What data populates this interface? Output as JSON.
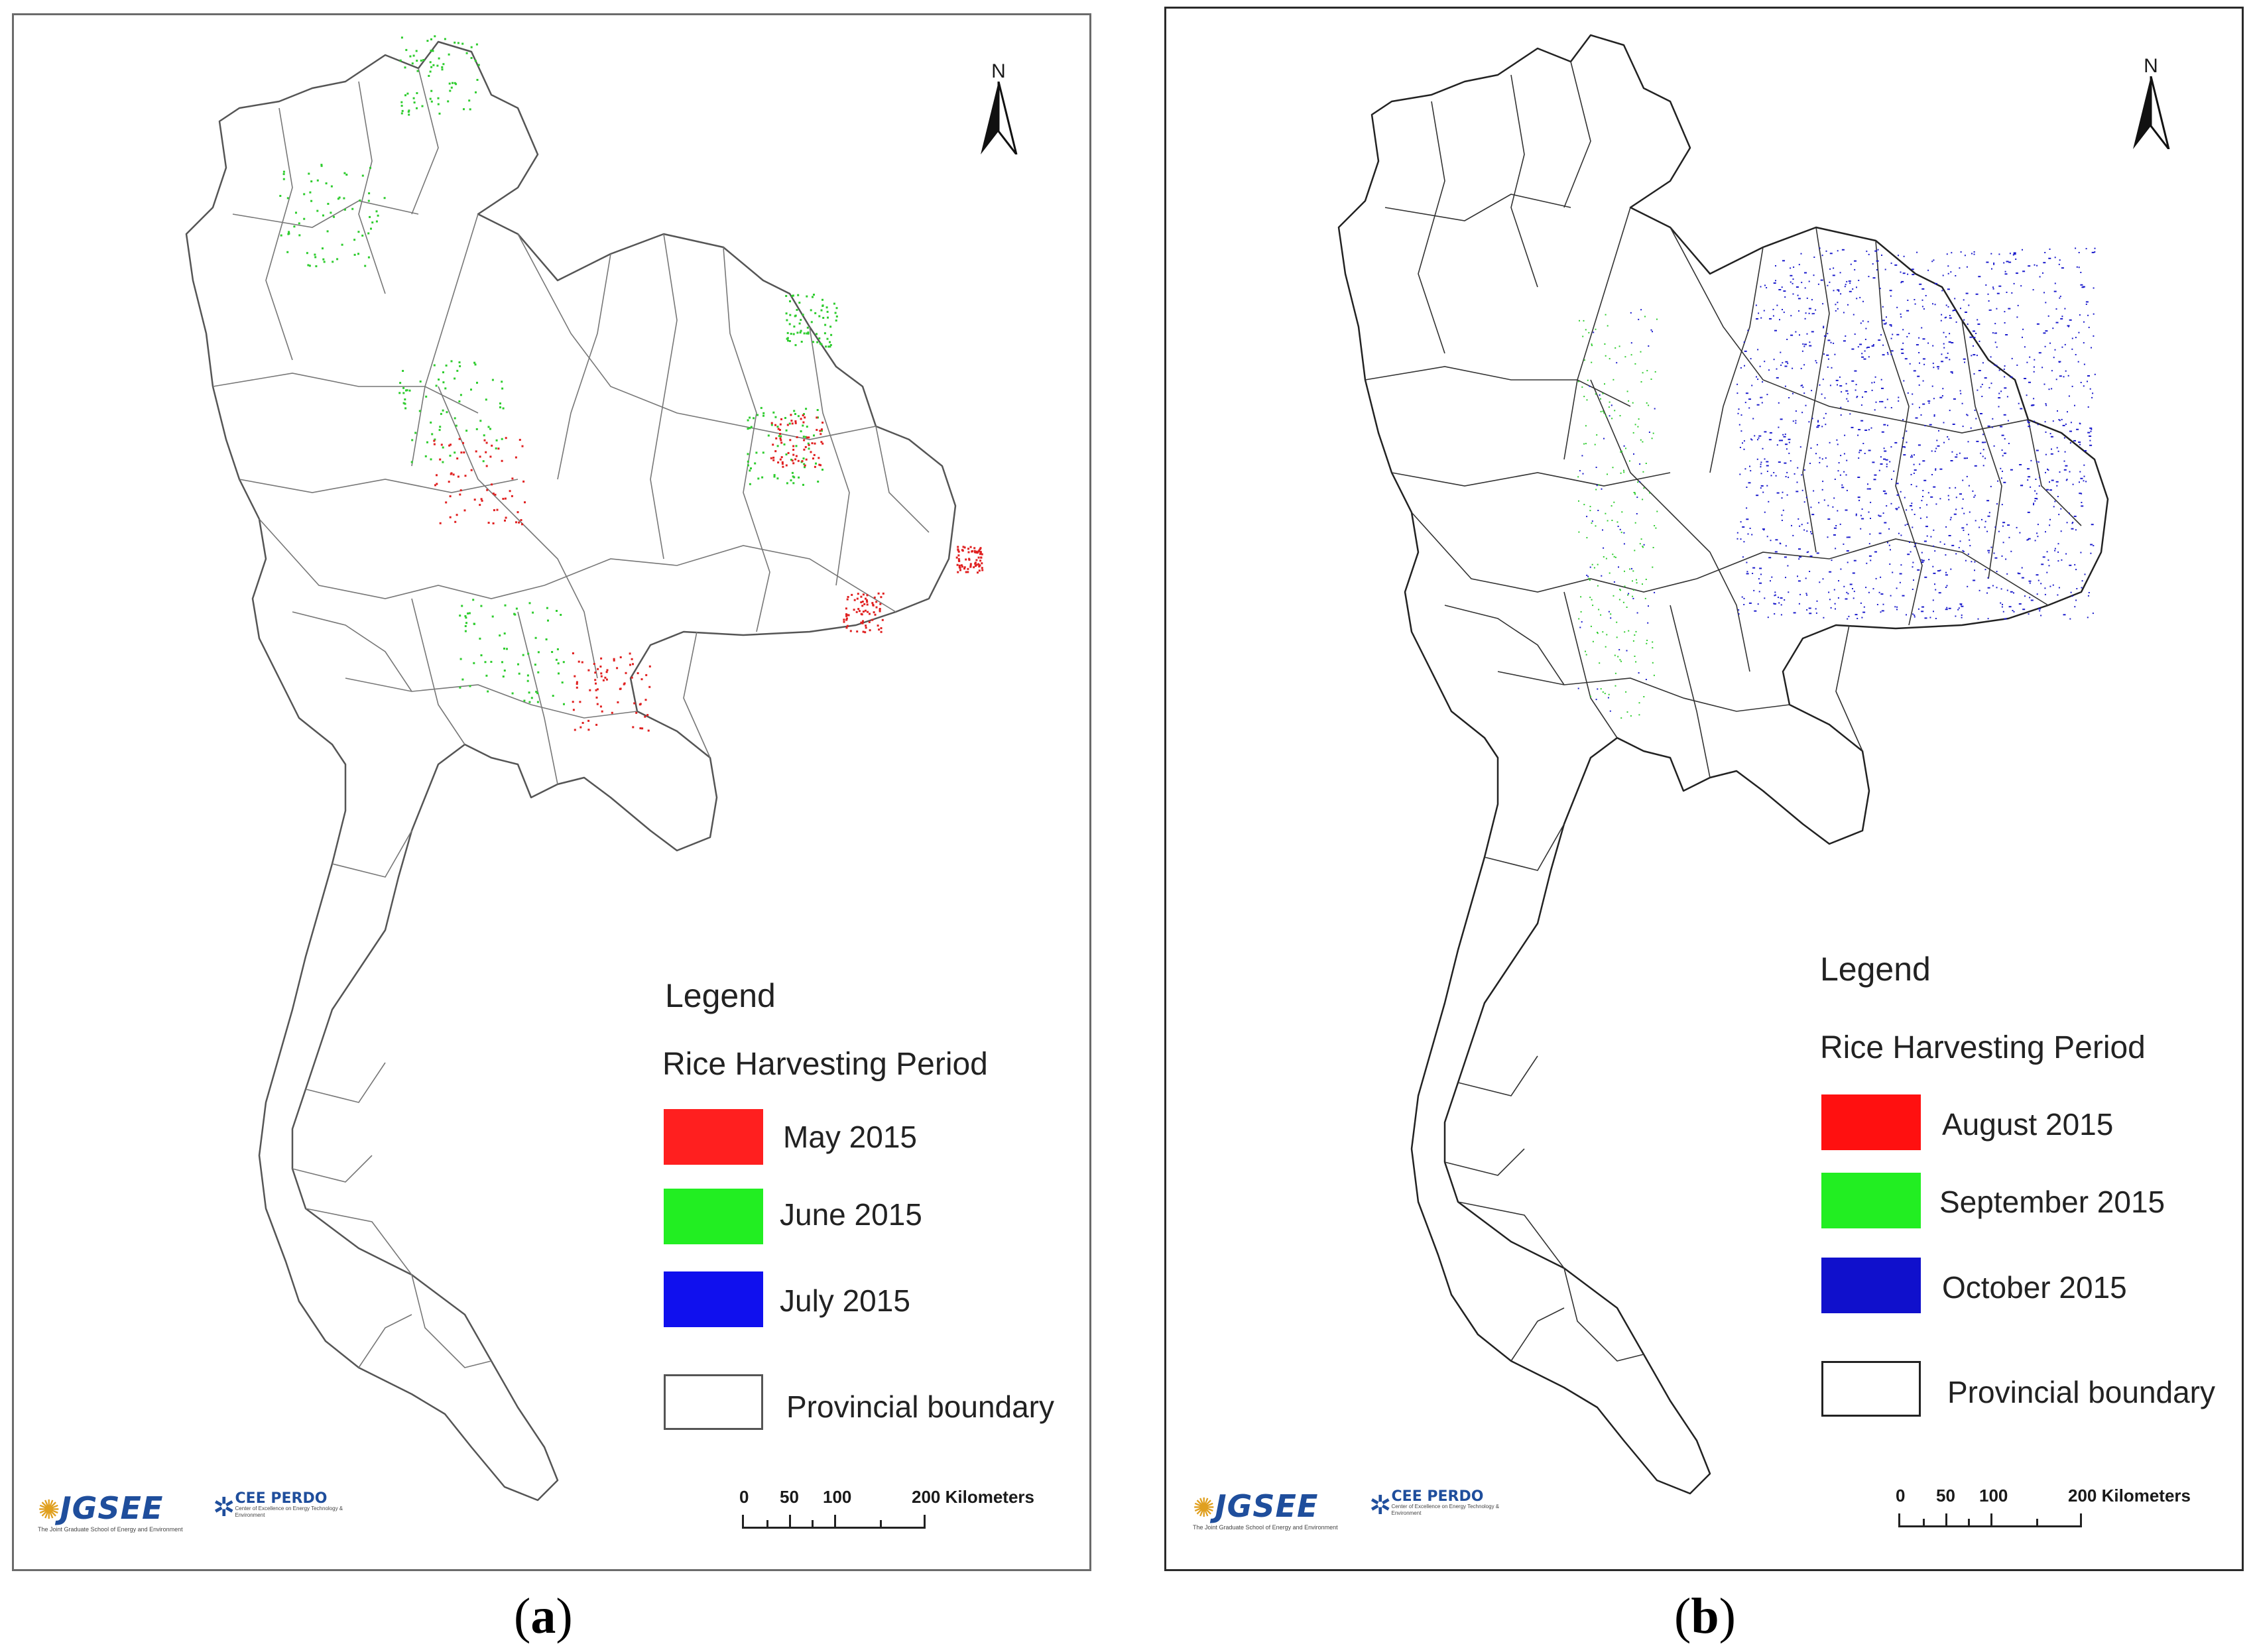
{
  "panels": [
    {
      "id": "a",
      "caption_letter": "a",
      "north_label": "N",
      "legend": {
        "title": "Legend",
        "subtitle": "Rice Harvesting Period",
        "items": [
          {
            "label": "May 2015",
            "color": "#ff1f1f"
          },
          {
            "label": "June 2015",
            "color": "#22ee22"
          },
          {
            "label": "July 2015",
            "color": "#1010ee"
          },
          {
            "label": "Provincial boundary",
            "color": "#ffffff"
          }
        ]
      },
      "scale": {
        "ticks": [
          "0",
          "50",
          "100",
          "200 Kilometers"
        ]
      },
      "logos": {
        "jgsee": "JGSEE",
        "jgsee_sub": "The Joint Graduate School of Energy and Environment",
        "cee": "CEE PERDO",
        "cee_sub": "Center of Excellence on Energy Technology & Environment"
      },
      "dot_colors": [
        "#2ecc2e",
        "#e02020",
        "#c09060"
      ]
    },
    {
      "id": "b",
      "caption_letter": "b",
      "north_label": "N",
      "legend": {
        "title": "Legend",
        "subtitle": "Rice Harvesting Period",
        "items": [
          {
            "label": "August 2015",
            "color": "#ff1010"
          },
          {
            "label": "September 2015",
            "color": "#22ee22"
          },
          {
            "label": "October 2015",
            "color": "#1010cc"
          },
          {
            "label": "Provincial boundary",
            "color": "#ffffff"
          }
        ]
      },
      "scale": {
        "ticks": [
          "0",
          "50",
          "100",
          "200 Kilometers"
        ]
      },
      "logos": {
        "jgsee": "JGSEE",
        "jgsee_sub": "The Joint Graduate School of Energy and Environment",
        "cee": "CEE PERDO",
        "cee_sub": "Center of Excellence on Energy Technology & Environment"
      },
      "dot_colors": [
        "#1a1acc",
        "#2ecc2e"
      ]
    }
  ]
}
